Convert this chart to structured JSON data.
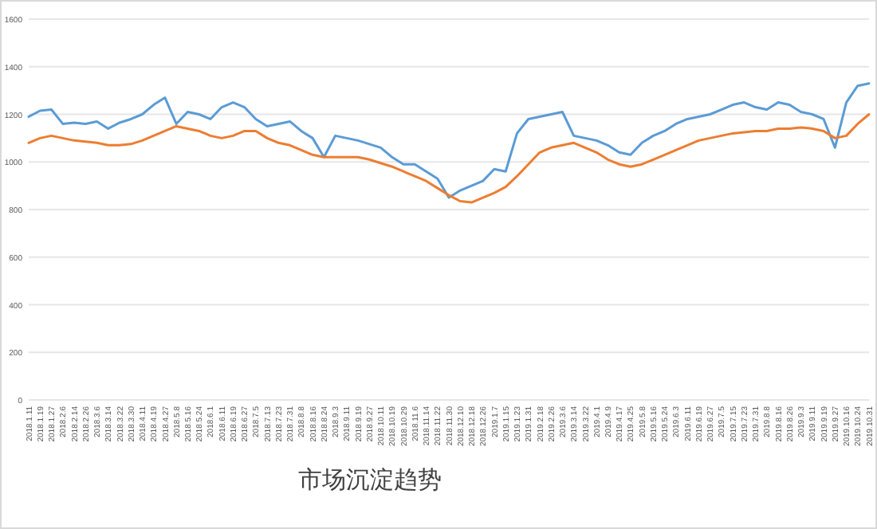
{
  "chart_data": {
    "type": "line",
    "title": "市场沉淀趋势",
    "categories": [
      "2018.1.11",
      "2018.1.19",
      "2018.1.27",
      "2018.2.6",
      "2018.2.14",
      "2018.2.26",
      "2018.3.6",
      "2018.3.14",
      "2018.3.22",
      "2018.3.30",
      "2018.4.11",
      "2018.4.19",
      "2018.4.27",
      "2018.5.8",
      "2018.5.16",
      "2018.5.24",
      "2018.6.1",
      "2018.6.11",
      "2018.6.19",
      "2018.6.27",
      "2018.7.5",
      "2018.7.13",
      "2018.7.23",
      "2018.7.31",
      "2018.8.8",
      "2018.8.16",
      "2018.8.24",
      "2018.9.3",
      "2018.9.11",
      "2018.9.19",
      "2018.9.27",
      "2018.10.11",
      "2018.10.19",
      "2018.10.29",
      "2018.11.6",
      "2018.11.14",
      "2018.11.22",
      "2018.11.30",
      "2018.12.10",
      "2018.12.18",
      "2018.12.26",
      "2019.1.7",
      "2019.1.15",
      "2019.1.23",
      "2019.1.31",
      "2019.2.18",
      "2019.2.26",
      "2019.3.6",
      "2019.3.14",
      "2019.3.22",
      "2019.4.1",
      "2019.4.9",
      "2019.4.17",
      "2019.4.25",
      "2019.5.8",
      "2019.5.16",
      "2019.5.24",
      "2019.6.3",
      "2019.6.11",
      "2019.6.19",
      "2019.6.27",
      "2019.7.5",
      "2019.7.15",
      "2019.7.23",
      "2019.7.31",
      "2019.8.8",
      "2019.8.16",
      "2019.8.26",
      "2019.9.3",
      "2019.9.11",
      "2019.9.19",
      "2019.9.27",
      "2019.10.16",
      "2019.10.24",
      "2019.10.31"
    ],
    "series": [
      {
        "color": "#5b9bd5",
        "values": [
          1190,
          1215,
          1220,
          1160,
          1165,
          1160,
          1170,
          1140,
          1165,
          1180,
          1200,
          1240,
          1270,
          1160,
          1210,
          1200,
          1180,
          1230,
          1250,
          1230,
          1180,
          1150,
          1160,
          1170,
          1130,
          1100,
          1020,
          1110,
          1100,
          1090,
          1075,
          1060,
          1020,
          990,
          990,
          960,
          930,
          850,
          880,
          900,
          920,
          970,
          960,
          1120,
          1180,
          1190,
          1200,
          1210,
          1110,
          1100,
          1090,
          1070,
          1040,
          1030,
          1080,
          1110,
          1130,
          1160,
          1180,
          1190,
          1200,
          1220,
          1240,
          1250,
          1230,
          1220,
          1250,
          1240,
          1210,
          1200,
          1180,
          1060,
          1250,
          1320,
          1330
        ]
      },
      {
        "color": "#ed7d31",
        "values": [
          1080,
          1100,
          1110,
          1100,
          1090,
          1085,
          1080,
          1070,
          1070,
          1075,
          1090,
          1110,
          1130,
          1150,
          1140,
          1130,
          1110,
          1100,
          1110,
          1130,
          1130,
          1100,
          1080,
          1070,
          1050,
          1030,
          1020,
          1020,
          1020,
          1020,
          1010,
          995,
          980,
          960,
          940,
          920,
          890,
          860,
          835,
          830,
          850,
          870,
          895,
          940,
          990,
          1040,
          1060,
          1070,
          1080,
          1060,
          1040,
          1010,
          990,
          980,
          990,
          1010,
          1030,
          1050,
          1070,
          1090,
          1100,
          1110,
          1120,
          1125,
          1130,
          1130,
          1140,
          1140,
          1145,
          1140,
          1130,
          1100,
          1110,
          1160,
          1200
        ]
      }
    ],
    "ylim": [
      0,
      1600
    ],
    "yticks": [
      0,
      200,
      400,
      600,
      800,
      1000,
      1200,
      1400,
      1600
    ],
    "grid": "y",
    "marker": "none",
    "line_style": "solid"
  }
}
